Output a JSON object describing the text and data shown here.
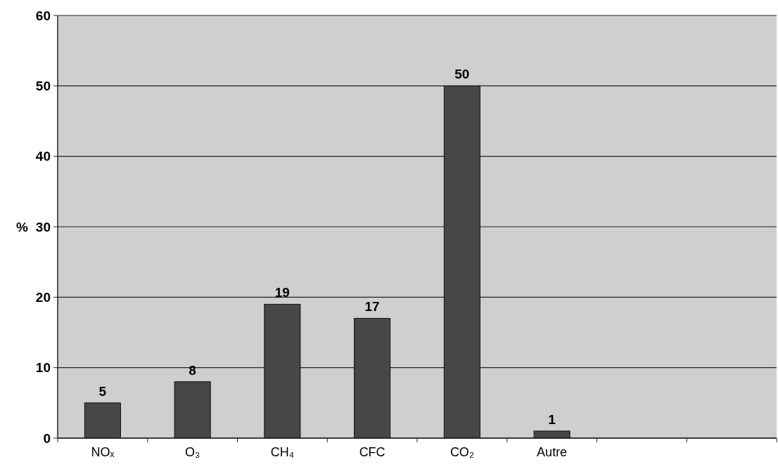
{
  "chart_data": {
    "type": "bar",
    "ylabel": "%",
    "categories": [
      "NOₓ",
      "O₃",
      "CH₄",
      "CFC",
      "CO₂",
      "Autre",
      null,
      null
    ],
    "values": [
      5,
      8,
      19,
      17,
      50,
      1,
      null,
      null
    ],
    "color": "#474747",
    "ylim": [
      0,
      60
    ],
    "yticks": [
      0,
      10,
      20,
      30,
      40,
      50,
      60
    ],
    "grid": "y",
    "data_labels": true
  }
}
